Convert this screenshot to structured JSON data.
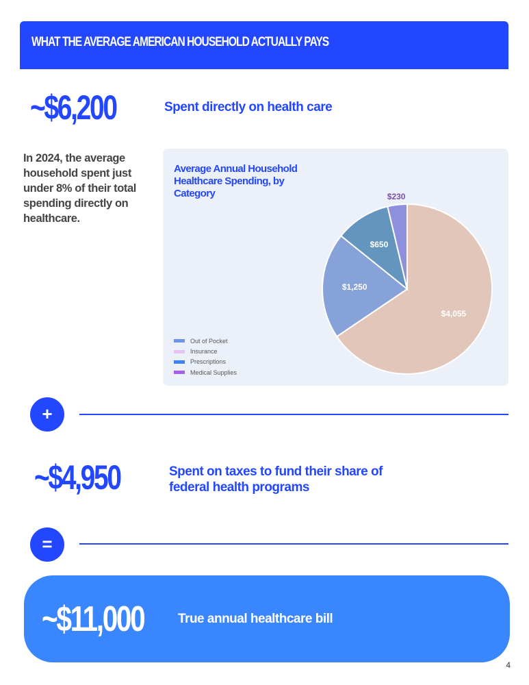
{
  "header": {
    "title": "WHAT THE AVERAGE AMERICAN HOUSEHOLD ACTUALLY PAYS"
  },
  "direct": {
    "amount": "~$6,200",
    "label": "Spent directly on health care",
    "note": "In 2024, the average household spent just under 8% of their total spending directly on healthcare."
  },
  "chart_data": {
    "type": "pie",
    "title": "Average Annual Household Healthcare Spending, by Category",
    "slices": [
      {
        "label": "$4,055",
        "value": 4055,
        "color": "#e2c6ba"
      },
      {
        "label": "$1,250",
        "value": 1250,
        "color": "#87a2d8"
      },
      {
        "label": "$650",
        "value": 650,
        "color": "#6395bf"
      },
      {
        "label": "$230",
        "value": 230,
        "color": "#8f8fe0"
      }
    ],
    "legend": [
      {
        "name": "Out of Pocket",
        "color": "#6f94ee"
      },
      {
        "name": "Insurance",
        "color": "#e6c1f5"
      },
      {
        "name": "Prescriptions",
        "color": "#3a84f5"
      },
      {
        "name": "Medical Supplies",
        "color": "#a55ff0"
      }
    ],
    "legend_position": "bottom-left"
  },
  "plus_symbol": "+",
  "taxes": {
    "amount": "~$4,950",
    "label": "Spent on taxes to fund their share of federal health programs"
  },
  "equals_symbol": "=",
  "total": {
    "amount": "~$11,000",
    "label": "True annual healthcare bill"
  },
  "page_number": "4"
}
